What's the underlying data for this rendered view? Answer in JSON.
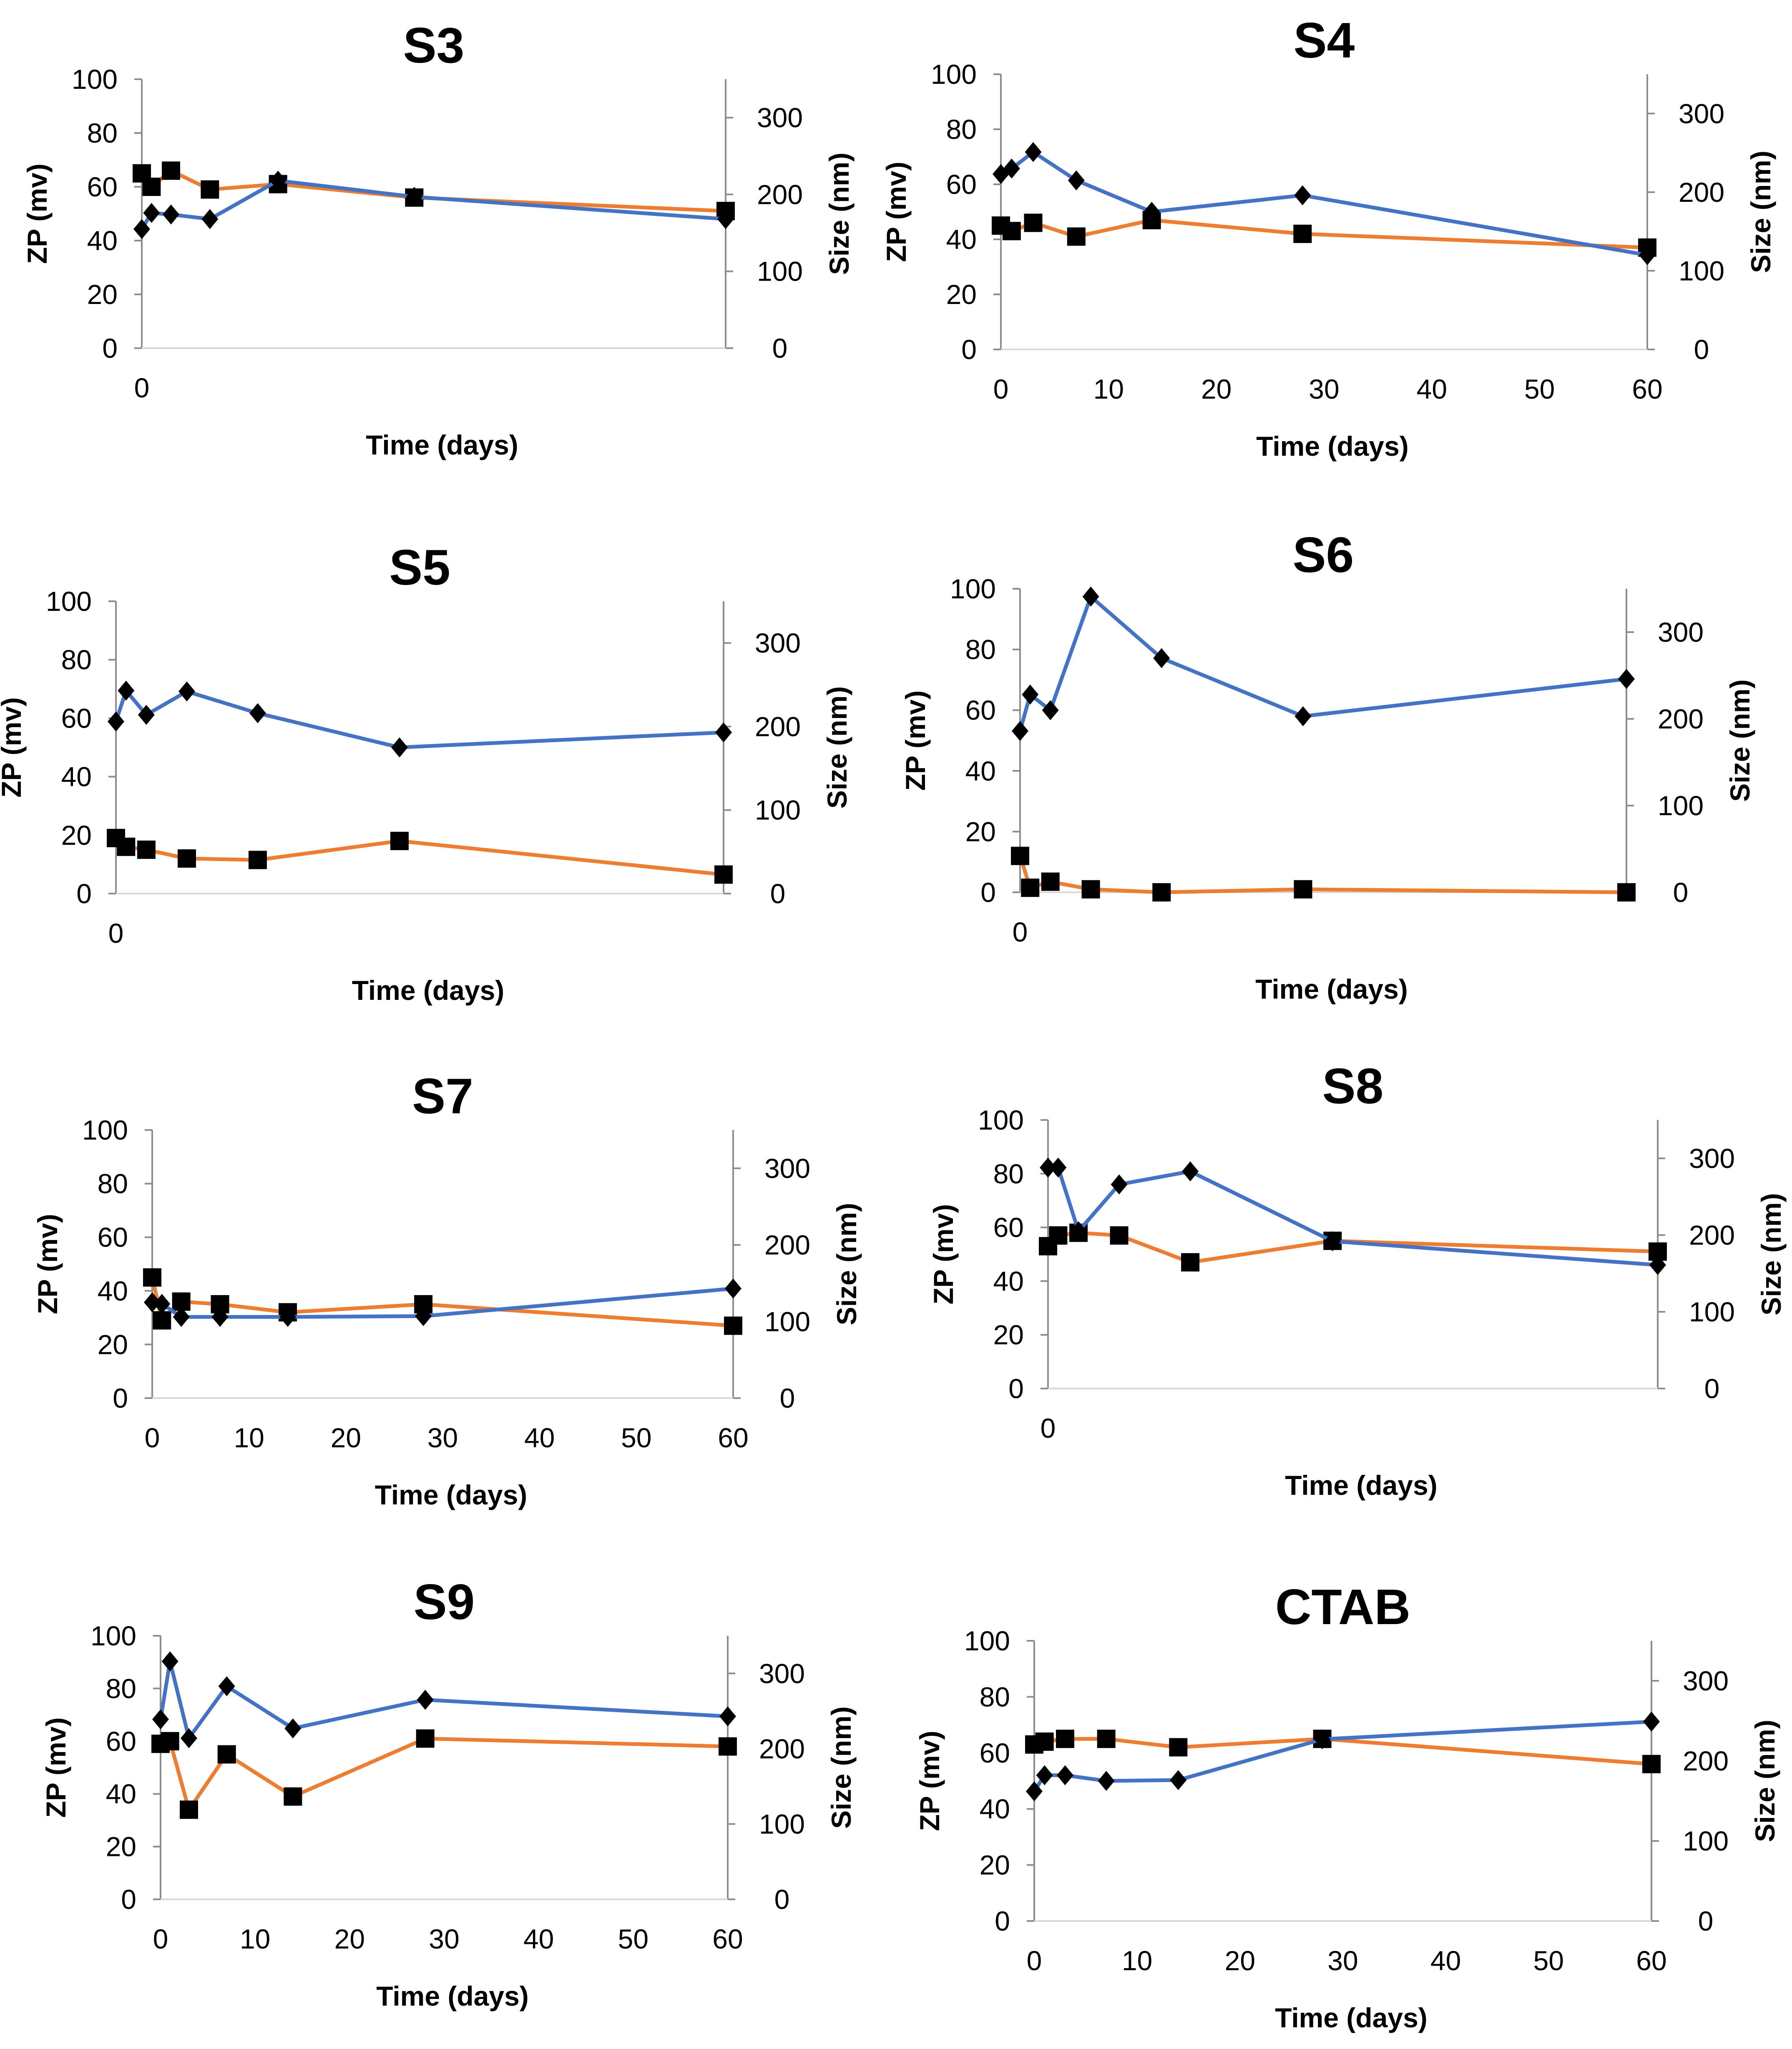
{
  "chart_data": [
    {
      "type": "line",
      "title": "S3",
      "xlabel": "Time (days)",
      "ylabel_left": "ZP (mv)",
      "ylabel_right": "Size (nm)",
      "ylim_left": [
        0,
        100
      ],
      "yticks_left": [
        0,
        20,
        40,
        60,
        80,
        100
      ],
      "ylim_right": [
        0,
        350
      ],
      "yticks_right": [
        0,
        100,
        200,
        300
      ],
      "xlim": [
        0,
        60
      ],
      "xticks": [
        0
      ],
      "series": [
        {
          "name": "ZP",
          "axis": "left",
          "color": "#ED7D31",
          "marker": "square",
          "x": [
            0,
            1,
            3,
            7,
            14,
            28,
            60
          ],
          "y": [
            65,
            60,
            66,
            59,
            61,
            56,
            51
          ]
        },
        {
          "name": "Size",
          "axis": "right",
          "color": "#4472C4",
          "marker": "diamond",
          "x": [
            0,
            1,
            3,
            7,
            14,
            28,
            60
          ],
          "y": [
            155,
            176,
            174,
            168,
            218,
            197,
            168
          ]
        }
      ]
    },
    {
      "type": "line",
      "title": "S4",
      "xlabel": "Time (days)",
      "ylabel_left": "ZP (mv)",
      "ylabel_right": "Size (nm)",
      "ylim_left": [
        0,
        100
      ],
      "yticks_left": [
        0,
        20,
        40,
        60,
        80,
        100
      ],
      "ylim_right": [
        0,
        350
      ],
      "yticks_right": [
        0,
        100,
        200,
        300
      ],
      "xlim": [
        0,
        60
      ],
      "xticks": [
        0,
        10,
        20,
        30,
        40,
        50,
        60
      ],
      "series": [
        {
          "name": "ZP",
          "axis": "left",
          "color": "#ED7D31",
          "marker": "square",
          "x": [
            0,
            1,
            3,
            7,
            14,
            28,
            60
          ],
          "y": [
            45,
            43,
            46,
            41,
            47,
            42,
            37
          ]
        },
        {
          "name": "Size",
          "axis": "right",
          "color": "#4472C4",
          "marker": "diamond",
          "x": [
            0,
            1,
            3,
            7,
            14,
            28,
            60
          ],
          "y": [
            223,
            230,
            251,
            215,
            175,
            196,
            120
          ]
        }
      ]
    },
    {
      "type": "line",
      "title": "S5",
      "xlabel": "Time (days)",
      "ylabel_left": "ZP (mv)",
      "ylabel_right": "Size (nm)",
      "ylim_left": [
        0,
        100
      ],
      "yticks_left": [
        0,
        20,
        40,
        60,
        80,
        100
      ],
      "ylim_right": [
        0,
        350
      ],
      "yticks_right": [
        0,
        100,
        200,
        300
      ],
      "xlim": [
        0,
        60
      ],
      "xticks": [
        0
      ],
      "series": [
        {
          "name": "ZP",
          "axis": "left",
          "color": "#ED7D31",
          "marker": "square",
          "x": [
            0,
            1,
            3,
            7,
            14,
            28,
            60
          ],
          "y": [
            19,
            16,
            15,
            12,
            11.5,
            18,
            6.5
          ]
        },
        {
          "name": "Size",
          "axis": "right",
          "color": "#4472C4",
          "marker": "diamond",
          "x": [
            0,
            1,
            3,
            7,
            14,
            28,
            60
          ],
          "y": [
            206,
            243,
            214,
            242,
            216,
            175,
            193
          ]
        }
      ]
    },
    {
      "type": "line",
      "title": "S6",
      "xlabel": "Time (days)",
      "ylabel_left": "ZP (mv)",
      "ylabel_right": "Size (nm)",
      "ylim_left": [
        0,
        100
      ],
      "yticks_left": [
        0,
        20,
        40,
        60,
        80,
        100
      ],
      "ylim_right": [
        0,
        350
      ],
      "yticks_right": [
        0,
        100,
        200,
        300
      ],
      "xlim": [
        0,
        60
      ],
      "xticks": [
        0
      ],
      "series": [
        {
          "name": "ZP",
          "axis": "left",
          "color": "#ED7D31",
          "marker": "square",
          "x": [
            0,
            1,
            3,
            7,
            14,
            28,
            60
          ],
          "y": [
            12,
            1.5,
            3.5,
            1,
            0,
            1,
            0
          ]
        },
        {
          "name": "Size",
          "axis": "right",
          "color": "#4472C4",
          "marker": "diamond",
          "x": [
            0,
            1,
            3,
            7,
            14,
            28,
            60
          ],
          "y": [
            186,
            228,
            210,
            341,
            270,
            203,
            246
          ]
        }
      ]
    },
    {
      "type": "line",
      "title": "S7",
      "xlabel": "Time (days)",
      "ylabel_left": "ZP (mv)",
      "ylabel_right": "Size (nm)",
      "ylim_left": [
        0,
        100
      ],
      "yticks_left": [
        0,
        20,
        40,
        60,
        80,
        100
      ],
      "ylim_right": [
        0,
        350
      ],
      "yticks_right": [
        0,
        100,
        200,
        300
      ],
      "xlim": [
        0,
        60
      ],
      "xticks": [
        0,
        10,
        20,
        30,
        40,
        50,
        60
      ],
      "series": [
        {
          "name": "ZP",
          "axis": "left",
          "color": "#ED7D31",
          "marker": "square",
          "x": [
            0,
            1,
            3,
            7,
            14,
            28,
            60
          ],
          "y": [
            45,
            29,
            36,
            35,
            32,
            35,
            27
          ]
        },
        {
          "name": "Size",
          "axis": "right",
          "color": "#4472C4",
          "marker": "diamond",
          "x": [
            0,
            1,
            3,
            7,
            14,
            28,
            60
          ],
          "y": [
            125,
            123,
            106,
            106,
            106,
            107,
            143
          ]
        }
      ]
    },
    {
      "type": "line",
      "title": "S8",
      "xlabel": "Time (days)",
      "ylabel_left": "ZP (mv)",
      "ylabel_right": "Size (nm)",
      "ylim_left": [
        0,
        100
      ],
      "yticks_left": [
        0,
        20,
        40,
        60,
        80,
        100
      ],
      "ylim_right": [
        0,
        350
      ],
      "yticks_right": [
        0,
        100,
        200,
        300
      ],
      "xlim": [
        0,
        60
      ],
      "xticks": [
        0
      ],
      "series": [
        {
          "name": "ZP",
          "axis": "left",
          "color": "#ED7D31",
          "marker": "square",
          "x": [
            0,
            1,
            3,
            7,
            14,
            28,
            60
          ],
          "y": [
            53,
            57,
            58,
            57,
            47,
            55,
            51
          ]
        },
        {
          "name": "Size",
          "axis": "right",
          "color": "#4472C4",
          "marker": "diamond",
          "x": [
            0,
            1,
            3,
            7,
            14,
            28,
            60
          ],
          "y": [
            288,
            288,
            205,
            266,
            283,
            192,
            161
          ]
        }
      ]
    },
    {
      "type": "line",
      "title": "S9",
      "xlabel": "Time (days)",
      "ylabel_left": "ZP (mv)",
      "ylabel_right": "Size (nm)",
      "ylim_left": [
        0,
        100
      ],
      "yticks_left": [
        0,
        20,
        40,
        60,
        80,
        100
      ],
      "ylim_right": [
        0,
        350
      ],
      "yticks_right": [
        0,
        100,
        200,
        300
      ],
      "xlim": [
        0,
        60
      ],
      "xticks": [
        0,
        10,
        20,
        30,
        40,
        50,
        60
      ],
      "series": [
        {
          "name": "ZP",
          "axis": "left",
          "color": "#ED7D31",
          "marker": "square",
          "x": [
            0,
            1,
            3,
            7,
            14,
            28,
            60
          ],
          "y": [
            59,
            60,
            34,
            55,
            39,
            61,
            58
          ]
        },
        {
          "name": "Size",
          "axis": "right",
          "color": "#4472C4",
          "marker": "diamond",
          "x": [
            0,
            1,
            3,
            7,
            14,
            28,
            60
          ],
          "y": [
            239,
            316,
            214,
            283,
            227,
            265,
            243
          ]
        }
      ]
    },
    {
      "type": "line",
      "title": "CTAB",
      "xlabel": "Time (days)",
      "ylabel_left": "ZP (mv)",
      "ylabel_right": "Size (nm)",
      "ylim_left": [
        0,
        100
      ],
      "yticks_left": [
        0,
        20,
        40,
        60,
        80,
        100
      ],
      "ylim_right": [
        0,
        350
      ],
      "yticks_right": [
        0,
        100,
        200,
        300
      ],
      "xlim": [
        0,
        60
      ],
      "xticks": [
        0,
        10,
        20,
        30,
        40,
        50,
        60
      ],
      "series": [
        {
          "name": "ZP",
          "axis": "left",
          "color": "#ED7D31",
          "marker": "square",
          "x": [
            0,
            1,
            3,
            7,
            14,
            28,
            60
          ],
          "y": [
            63,
            64,
            65,
            65,
            62,
            65,
            56
          ]
        },
        {
          "name": "Size",
          "axis": "right",
          "color": "#4472C4",
          "marker": "diamond",
          "x": [
            0,
            1,
            3,
            7,
            14,
            28,
            60
          ],
          "y": [
            162,
            182,
            182,
            175,
            176,
            227,
            249
          ]
        }
      ]
    }
  ]
}
